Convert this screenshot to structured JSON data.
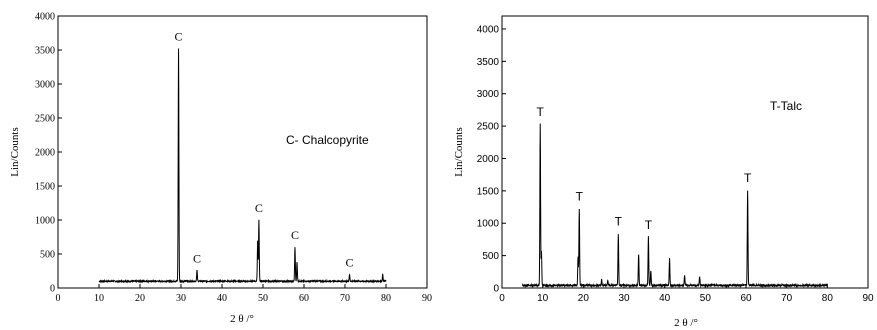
{
  "chart_data": [
    {
      "type": "line",
      "xlabel": "2 θ /°",
      "ylabel": "Lin/Counts",
      "xlim": [
        0,
        90
      ],
      "ylim": [
        0,
        4000
      ],
      "xticks": [
        "0",
        "10",
        "20",
        "30",
        "40",
        "50",
        "60",
        "70",
        "80",
        "90"
      ],
      "yticks": [
        "0",
        "500",
        "1000",
        "1500",
        "2000",
        "2500",
        "3000",
        "3500",
        "4000"
      ],
      "annotation": "C- Chalcopyrite",
      "grid": false,
      "x_range_data": [
        10,
        80
      ],
      "baseline": 100,
      "peaks": [
        {
          "x": 29.4,
          "y": 3520,
          "label": "C"
        },
        {
          "x": 33.9,
          "y": 260,
          "label": "C"
        },
        {
          "x": 48.7,
          "y": 700,
          "label": ""
        },
        {
          "x": 49.0,
          "y": 1000,
          "label": "C"
        },
        {
          "x": 57.8,
          "y": 600,
          "label": "C"
        },
        {
          "x": 58.3,
          "y": 380,
          "label": ""
        },
        {
          "x": 71.1,
          "y": 200,
          "label": "C"
        },
        {
          "x": 79.2,
          "y": 200,
          "label": ""
        }
      ]
    },
    {
      "type": "line",
      "xlabel": "2 θ /°",
      "ylabel": "Lin/Counts",
      "xlim": [
        0,
        90
      ],
      "ylim": [
        0,
        4200
      ],
      "xticks": [
        "0",
        "10",
        "20",
        "30",
        "40",
        "50",
        "60",
        "70",
        "80",
        "90"
      ],
      "yticks": [
        "0",
        "500",
        "1000",
        "1500",
        "2000",
        "2500",
        "3000",
        "3500",
        "4000"
      ],
      "annotation": "T-Talc",
      "grid": false,
      "x_range_data": [
        5,
        80
      ],
      "baseline": 40,
      "peaks": [
        {
          "x": 9.4,
          "y": 2530,
          "label": "T"
        },
        {
          "x": 9.7,
          "y": 580,
          "label": ""
        },
        {
          "x": 19.0,
          "y": 1230,
          "label": "T"
        },
        {
          "x": 18.7,
          "y": 470,
          "label": ""
        },
        {
          "x": 28.6,
          "y": 840,
          "label": "T"
        },
        {
          "x": 33.6,
          "y": 530,
          "label": ""
        },
        {
          "x": 36.0,
          "y": 790,
          "label": "T"
        },
        {
          "x": 36.6,
          "y": 270,
          "label": ""
        },
        {
          "x": 41.2,
          "y": 450,
          "label": ""
        },
        {
          "x": 44.9,
          "y": 190,
          "label": ""
        },
        {
          "x": 48.6,
          "y": 170,
          "label": ""
        },
        {
          "x": 60.4,
          "y": 1510,
          "label": "T"
        },
        {
          "x": 24.5,
          "y": 130,
          "label": ""
        },
        {
          "x": 26.0,
          "y": 110,
          "label": ""
        }
      ]
    }
  ]
}
